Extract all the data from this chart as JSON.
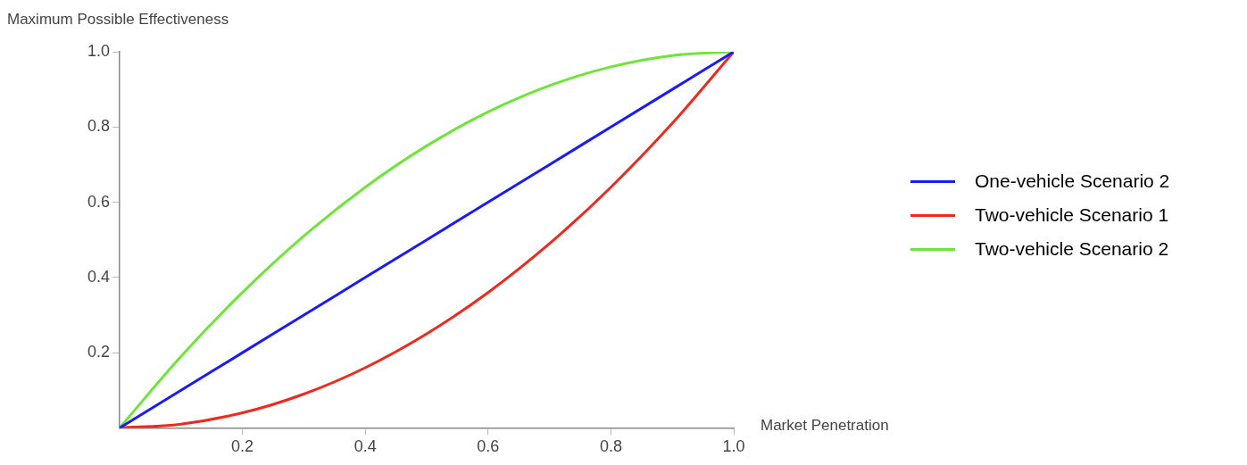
{
  "chart_data": {
    "type": "line",
    "xlabel": "Market Penetration",
    "ylabel": "Maximum Possible Effectiveness",
    "x": [
      0,
      0.1,
      0.2,
      0.3,
      0.4,
      0.5,
      0.6,
      0.7,
      0.8,
      0.9,
      1.0
    ],
    "series": [
      {
        "name": "One-vehicle Scenario 2",
        "color": "#1a1aff",
        "values": [
          0,
          0.1,
          0.2,
          0.3,
          0.4,
          0.5,
          0.6,
          0.7,
          0.8,
          0.9,
          1.0
        ]
      },
      {
        "name": "Two-vehicle Scenario 1",
        "color": "#ee2a1e",
        "values": [
          0,
          0.01,
          0.04,
          0.09,
          0.16,
          0.25,
          0.36,
          0.49,
          0.64,
          0.81,
          1.0
        ]
      },
      {
        "name": "Two-vehicle Scenario 2",
        "color": "#6fe53a",
        "values": [
          0,
          0.19,
          0.36,
          0.51,
          0.64,
          0.75,
          0.84,
          0.91,
          0.96,
          0.99,
          1.0
        ]
      }
    ],
    "xlim": [
      0,
      1
    ],
    "ylim": [
      0,
      1
    ],
    "xticks": [
      {
        "value": 0.2,
        "label": "0.2"
      },
      {
        "value": 0.4,
        "label": "0.4"
      },
      {
        "value": 0.6,
        "label": "0.6"
      },
      {
        "value": 0.8,
        "label": "0.8"
      },
      {
        "value": 1.0,
        "label": "1.0"
      }
    ],
    "yticks": [
      {
        "value": 0.2,
        "label": "0.2"
      },
      {
        "value": 0.4,
        "label": "0.4"
      },
      {
        "value": 0.6,
        "label": "0.6"
      },
      {
        "value": 0.8,
        "label": "0.8"
      },
      {
        "value": 1.0,
        "label": "1.0"
      }
    ],
    "grid": false,
    "legend": "right",
    "marker": "none",
    "line_style": "solid"
  }
}
